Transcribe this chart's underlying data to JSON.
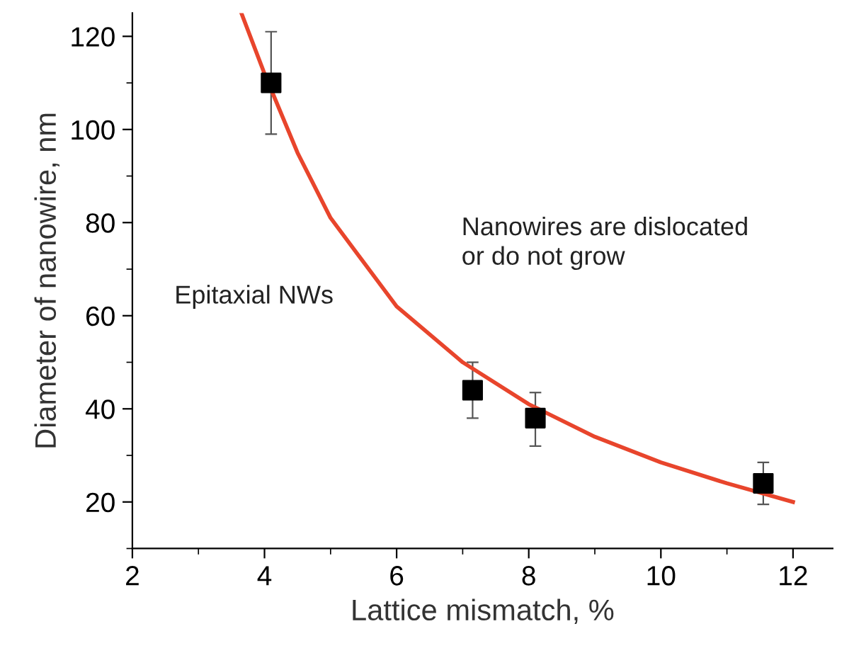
{
  "chart_data": {
    "type": "scatter",
    "xlabel": "Lattice mismatch, %",
    "ylabel": "Diameter of nanowire, nm",
    "xlim": [
      2,
      12.6
    ],
    "ylim": [
      10,
      125
    ],
    "xticks": [
      2,
      4,
      6,
      8,
      10,
      12
    ],
    "yticks": [
      20,
      40,
      60,
      80,
      100,
      120
    ],
    "grid": false,
    "legend": false,
    "annotations": [
      "Epitaxial NWs",
      "Nanowires are dislocated\nor do not grow"
    ],
    "series": [
      {
        "color": "#000000",
        "marker": "square",
        "x": [
          4.1,
          7.15,
          8.1,
          11.55
        ],
        "values": [
          110,
          44,
          38,
          24
        ],
        "errors": [
          [
            99,
            121
          ],
          [
            38,
            50
          ],
          [
            32,
            43.5
          ],
          [
            19.5,
            28.5
          ]
        ]
      },
      {
        "type": "line",
        "color": "#e8452c",
        "marker": "none",
        "line_style": "solid",
        "x": [
          3.65,
          4,
          4.5,
          5,
          6,
          7,
          8,
          9,
          10,
          11,
          12
        ],
        "values": [
          125,
          112,
          95,
          81,
          62,
          50,
          41,
          34,
          28.5,
          24,
          20
        ]
      }
    ]
  }
}
